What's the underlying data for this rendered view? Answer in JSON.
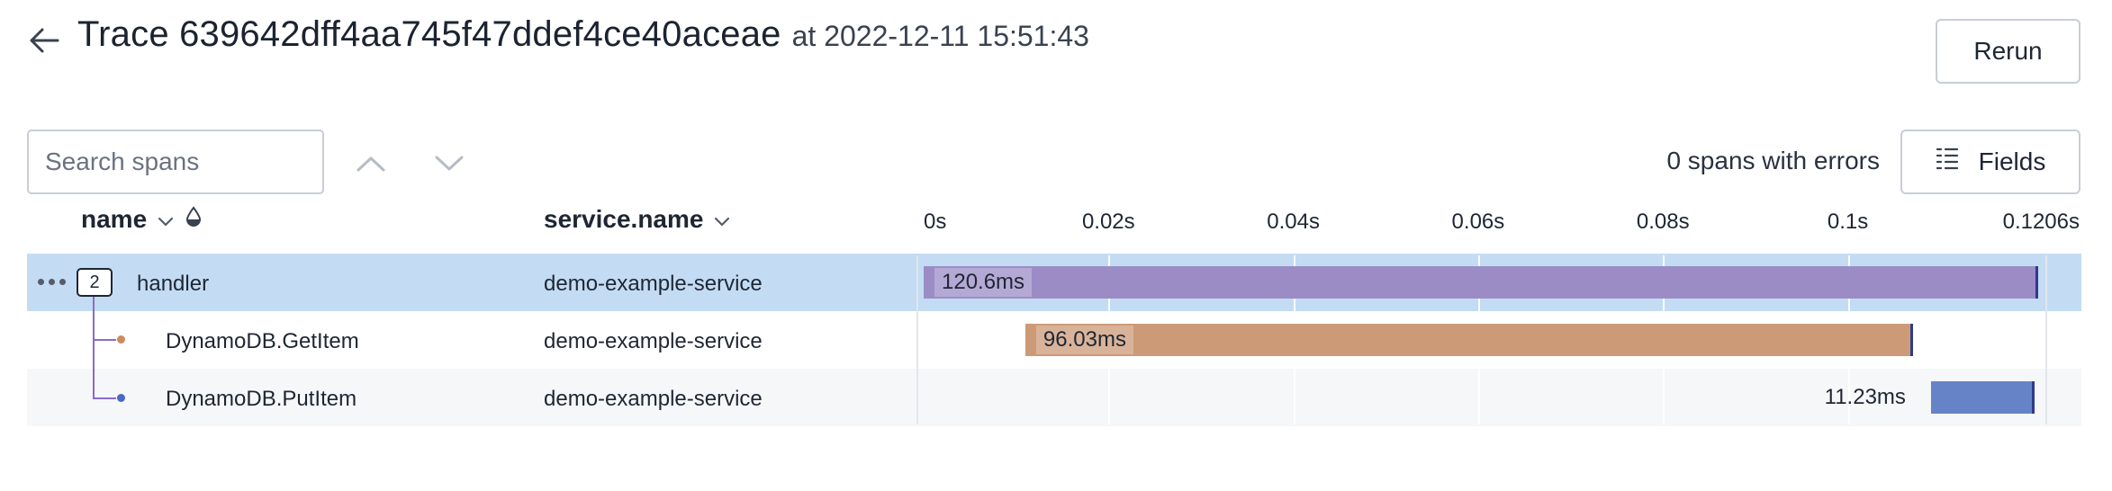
{
  "header": {
    "title": "Trace 639642dff4aa745f47ddef4ce40aceae",
    "timestamp": "at 2022-12-11 15:51:43",
    "rerun_label": "Rerun"
  },
  "toolbar": {
    "search_placeholder": "Search spans",
    "errors_text": "0 spans with errors",
    "fields_label": "Fields"
  },
  "columns": {
    "name": "name",
    "service": "service.name"
  },
  "timeline": {
    "duration_s": 0.1206,
    "ticks": [
      {
        "label": "0s",
        "value": 0
      },
      {
        "label": "0.02s",
        "value": 0.02
      },
      {
        "label": "0.04s",
        "value": 0.04
      },
      {
        "label": "0.06s",
        "value": 0.06
      },
      {
        "label": "0.08s",
        "value": 0.08
      },
      {
        "label": "0.1s",
        "value": 0.1
      },
      {
        "label": "0.1206s",
        "value": 0.1206
      }
    ]
  },
  "spans": [
    {
      "name": "handler",
      "service": "demo-example-service",
      "start_ms": 0,
      "duration_ms": 120.6,
      "duration_label": "120.6ms",
      "color": "#9b8cc6",
      "child_count": "2",
      "dot_color": ""
    },
    {
      "name": "DynamoDB.GetItem",
      "service": "demo-example-service",
      "start_ms": 11.0,
      "duration_ms": 96.03,
      "duration_label": "96.03ms",
      "color": "#cd9a77",
      "child_count": "",
      "dot_color": "#cd8a5e"
    },
    {
      "name": "DynamoDB.PutItem",
      "service": "demo-example-service",
      "start_ms": 109.0,
      "duration_ms": 11.23,
      "duration_label": "11.23ms",
      "color": "#6683c7",
      "child_count": "",
      "dot_color": "#4a68c4"
    }
  ],
  "colors": {
    "selected_row": "#c3dcf3",
    "tree_line": "#8a6bc9"
  }
}
